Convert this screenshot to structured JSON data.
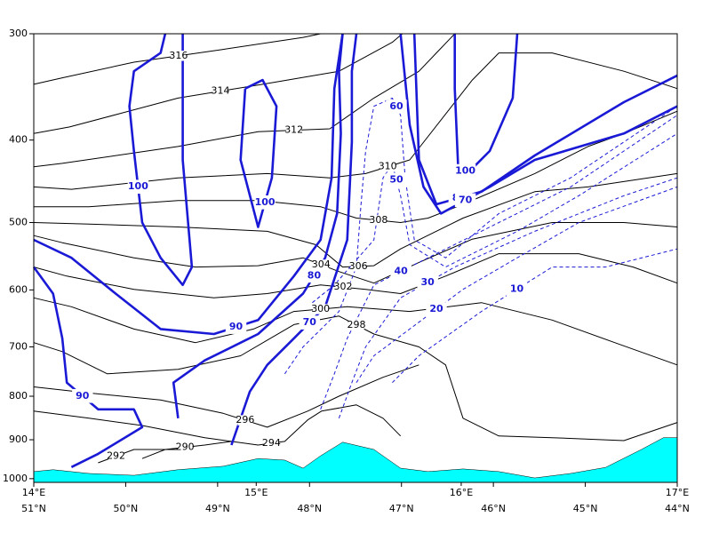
{
  "chart_data": {
    "type": "contour",
    "xlim": [
      51,
      44
    ],
    "ylim": [
      1010,
      300
    ],
    "log_y": true,
    "yticks": [
      300,
      400,
      500,
      600,
      700,
      800,
      900,
      1000
    ],
    "xticks": [
      {
        "value": 51,
        "label": "51°N"
      },
      {
        "value": 50,
        "label": "50°N"
      },
      {
        "value": 49,
        "label": "49°N"
      },
      {
        "value": 48,
        "label": "48°N"
      },
      {
        "value": 47,
        "label": "47°N"
      },
      {
        "value": 46,
        "label": "46°N"
      },
      {
        "value": 45,
        "label": "45°N"
      },
      {
        "value": 44,
        "label": "44°N"
      }
    ],
    "x2ticks": [
      {
        "value": 51,
        "label": "14°E"
      },
      {
        "value": 48.58,
        "label": "15°E"
      },
      {
        "value": 46.35,
        "label": "16°E"
      },
      {
        "value": 44,
        "label": "17°E"
      }
    ],
    "terrain": {
      "color": "#00ffff",
      "x": [
        51,
        50.79,
        50.4,
        49.91,
        49.43,
        48.94,
        48.56,
        48.27,
        48.07,
        47.88,
        47.64,
        47.3,
        47.01,
        46.71,
        46.33,
        45.94,
        45.55,
        45.16,
        44.78,
        44.39,
        44.15,
        44
      ],
      "y": [
        981,
        976,
        986,
        991,
        976,
        967,
        947,
        951,
        972,
        940,
        906,
        924,
        972,
        981,
        974,
        981,
        998,
        986,
        970,
        924,
        895,
        895
      ]
    },
    "contours": [
      {
        "level": 316,
        "style": "solid",
        "color": "#000000",
        "x": [
          51,
          50.69,
          49.91,
          48.94,
          48.07,
          47.88
        ],
        "y": [
          344,
          338,
          324,
          313,
          303,
          300
        ]
      },
      {
        "level": 314,
        "style": "solid",
        "color": "#000000",
        "x": [
          51,
          50.61,
          49.43,
          48.51,
          47.68,
          47.1,
          46.99
        ],
        "y": [
          393,
          386,
          357,
          344,
          332,
          307,
          300
        ]
      },
      {
        "level": 312,
        "style": "solid",
        "color": "#000000",
        "x": [
          51,
          50.69,
          49.43,
          48.56,
          47.78,
          47.3,
          46.81,
          46.62,
          46.42
        ],
        "y": [
          430,
          426,
          407,
          391,
          388,
          357,
          332,
          316,
          300
        ]
      },
      {
        "level": 310,
        "style": "solid",
        "color": "#000000",
        "x": [
          51,
          50.59,
          49.43,
          48.46,
          47.78,
          47.39,
          46.91,
          46.23,
          45.94,
          45.36,
          44.58,
          44
        ],
        "y": [
          454,
          457,
          443,
          438,
          443,
          438,
          422,
          340,
          316,
          316,
          332,
          348
        ]
      },
      {
        "level": 308,
        "style": "solid",
        "color": "#000000",
        "x": [
          51,
          50.4,
          49.43,
          48.56,
          47.88,
          47.49,
          47.01,
          46.71,
          46.33,
          45.55,
          44.97,
          44.58,
          44
        ],
        "y": [
          479,
          479,
          471,
          471,
          479,
          494,
          500,
          494,
          476,
          438,
          407,
          393,
          370
        ]
      },
      {
        "level": 306,
        "style": "solid",
        "color": "#000000",
        "x": [
          51,
          50.4,
          49.43,
          48.46,
          47.93,
          47.64,
          47.3,
          47.01,
          46.33,
          45.55,
          44.97,
          44
        ],
        "y": [
          500,
          502,
          506,
          512,
          531,
          564,
          562,
          537,
          494,
          460,
          454,
          438
        ]
      },
      {
        "level": 304,
        "style": "solid",
        "color": "#000000",
        "x": [
          51,
          50.69,
          49.91,
          49.24,
          48.56,
          48.07,
          47.68,
          47.3,
          46.81,
          46.23,
          45.36,
          44.58,
          44
        ],
        "y": [
          518,
          528,
          550,
          564,
          562,
          550,
          571,
          589,
          557,
          523,
          500,
          500,
          506
        ]
      },
      {
        "level": 302,
        "style": "solid",
        "color": "#000000",
        "x": [
          51,
          50.64,
          49.91,
          49.04,
          48.46,
          47.88,
          47.39,
          47.01,
          46.52,
          45.94,
          45.07,
          44.48,
          44
        ],
        "y": [
          564,
          578,
          599,
          613,
          606,
          592,
          599,
          606,
          578,
          544,
          544,
          564,
          589
        ]
      },
      {
        "level": 300,
        "style": "solid",
        "color": "#000000",
        "x": [
          51,
          50.59,
          49.91,
          49.24,
          48.61,
          48.17,
          47.59,
          46.91,
          46.13,
          45.36,
          44.68,
          44
        ],
        "y": [
          613,
          628,
          667,
          692,
          667,
          636,
          628,
          636,
          621,
          651,
          692,
          735
        ]
      },
      {
        "level": 298,
        "style": "solid",
        "color": "#000000",
        "x": [
          51,
          50.69,
          50.2,
          49.43,
          48.75,
          48.17,
          47.68,
          47.3,
          46.81,
          46.52,
          46.33,
          45.94,
          45.36,
          44.58,
          44
        ],
        "y": [
          692,
          709,
          753,
          744,
          717,
          659,
          644,
          676,
          700,
          735,
          849,
          891,
          895,
          902,
          859
        ]
      },
      {
        "level": 296,
        "style": "solid",
        "color": "#000000",
        "x": [
          51,
          50.4,
          49.62,
          48.94,
          48.46,
          48.02,
          47.68,
          47.2,
          46.81
        ],
        "y": [
          780,
          793,
          808,
          838,
          870,
          833,
          800,
          760,
          735
        ]
      },
      {
        "level": 294,
        "style": "solid",
        "color": "#000000",
        "x": [
          51,
          50.4,
          49.82,
          49.14,
          48.56,
          48.27,
          48.02,
          47.87,
          47.49,
          47.2,
          47.01
        ],
        "y": [
          833,
          849,
          866,
          895,
          913,
          904,
          853,
          833,
          819,
          849,
          891
        ]
      },
      {
        "level": 292,
        "style": "solid",
        "color": "#000000",
        "x": [
          50.3,
          49.91,
          49.43
        ],
        "y": [
          958,
          924,
          924
        ]
      },
      {
        "level": 290,
        "style": "solid",
        "color": "#000000",
        "x": [
          49.82,
          49.57,
          49.14,
          48.85
        ],
        "y": [
          947,
          924,
          913,
          904
        ]
      },
      {
        "level": 100,
        "style": "solid",
        "color": "#1a1ad6",
        "x": [
          49.57,
          49.62,
          49.91,
          49.96,
          49.91,
          49.82,
          49.62,
          49.38,
          49.28,
          49.38,
          49.38
        ],
        "y": [
          300,
          316,
          332,
          365,
          412,
          500,
          550,
          592,
          564,
          422,
          300
        ]
      },
      {
        "level": 100,
        "style": "solid",
        "color": "#1a1ad6",
        "x": [
          48.7,
          48.75,
          48.56,
          48.41,
          48.36,
          48.51,
          48.7
        ],
        "y": [
          348,
          422,
          506,
          443,
          365,
          340,
          348
        ]
      },
      {
        "level": 100,
        "style": "solid",
        "color": "#1a1ad6",
        "x": [
          46.42,
          46.42,
          46.38,
          46.23,
          46.04,
          45.79,
          45.74
        ],
        "y": [
          300,
          348,
          438,
          432,
          412,
          357,
          300
        ]
      },
      {
        "level": 90,
        "style": "solid",
        "color": "#1a1ad6",
        "x": [
          51,
          50.59,
          50.11,
          49.62,
          49.04,
          48.56,
          48.17,
          47.88,
          47.76,
          47.73,
          47.64
        ],
        "y": [
          524,
          550,
          606,
          667,
          676,
          651,
          578,
          524,
          443,
          348,
          300
        ]
      },
      {
        "level": 90,
        "style": "solid",
        "color": "#1a1ad6",
        "x": [
          51,
          50.79,
          50.69,
          50.64,
          50.3,
          49.91,
          49.82,
          50.3,
          50.59
        ],
        "y": [
          564,
          606,
          684,
          771,
          829,
          829,
          870,
          935,
          969
        ]
      },
      {
        "level": 80,
        "style": "solid",
        "color": "#1a1ad6",
        "x": [
          49.43,
          49.48,
          49.14,
          48.56,
          48.07,
          47.83,
          47.7,
          47.66,
          47.68,
          47.64
        ],
        "y": [
          849,
          771,
          726,
          676,
          606,
          550,
          488,
          393,
          332,
          300
        ]
      },
      {
        "level": 80,
        "style": "solid",
        "color": "#1a1ad6",
        "x": [
          46.86,
          46.81,
          46.62,
          46.13,
          45.55,
          44.58,
          44
        ],
        "y": [
          300,
          422,
          476,
          460,
          417,
          361,
          336
        ]
      },
      {
        "level": 70,
        "style": "solid",
        "color": "#1a1ad6",
        "x": [
          48.85,
          48.65,
          48.46,
          48.17,
          47.83,
          47.59,
          47.54,
          47.54,
          47.49
        ],
        "y": [
          913,
          790,
          735,
          684,
          628,
          524,
          402,
          332,
          300
        ]
      },
      {
        "level": 70,
        "style": "solid",
        "color": "#1a1ad6",
        "x": [
          47.01,
          46.91,
          46.76,
          46.57,
          46.04,
          45.55,
          44.58,
          44
        ],
        "y": [
          300,
          384,
          454,
          488,
          454,
          422,
          393,
          365
        ]
      },
      {
        "level": 60,
        "style": "dashed",
        "color": "#1a1ad6",
        "x": [
          48.27,
          48.07,
          47.68,
          47.49,
          47.44,
          47.39,
          47.3,
          47.1,
          47.01,
          46.96,
          46.86,
          46.52,
          45.94,
          45.16,
          44.58,
          44
        ],
        "y": [
          753,
          700,
          636,
          564,
          476,
          412,
          365,
          357,
          374,
          443,
          524,
          550,
          488,
          443,
          402,
          365
        ]
      },
      {
        "level": 50,
        "style": "dashed",
        "color": "#1a1ad6",
        "x": [
          47.97,
          47.73,
          47.3,
          47.2,
          47.1,
          47.01,
          46.91,
          46.52,
          45.74,
          45.07,
          44
        ],
        "y": [
          621,
          592,
          524,
          443,
          427,
          465,
          531,
          564,
          512,
          465,
          393
        ]
      },
      {
        "level": 40,
        "style": "dashed",
        "color": "#1a1ad6",
        "x": [
          47.88,
          47.73,
          47.59,
          47.3,
          46.71,
          45.94,
          45.16,
          44.58,
          44
        ],
        "y": [
          829,
          753,
          684,
          592,
          550,
          500,
          454,
          412,
          374
        ]
      },
      {
        "level": 30,
        "style": "dashed",
        "color": "#1a1ad6",
        "x": [
          47.68,
          47.54,
          47.39,
          47.01,
          46.42,
          45.55,
          44.58,
          44
        ],
        "y": [
          849,
          771,
          700,
          613,
          564,
          512,
          465,
          443
        ]
      },
      {
        "level": 20,
        "style": "dashed",
        "color": "#1a1ad6",
        "x": [
          47.49,
          47.3,
          46.91,
          46.33,
          45.74,
          45.07,
          44
        ],
        "y": [
          771,
          717,
          667,
          599,
          550,
          500,
          454
        ]
      },
      {
        "level": 10,
        "style": "dashed",
        "color": "#1a1ad6",
        "x": [
          47.1,
          46.81,
          46.13,
          45.36,
          44.78,
          44
        ],
        "y": [
          771,
          717,
          636,
          564,
          564,
          537
        ]
      }
    ]
  }
}
